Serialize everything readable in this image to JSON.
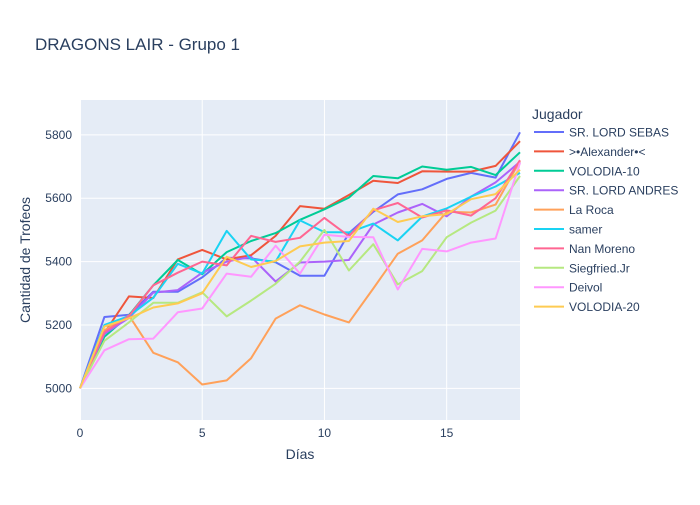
{
  "chart_data": {
    "type": "line",
    "title": "DRAGONS LAIR - Grupo 1",
    "xlabel": "Días",
    "ylabel": "Cantidad de Trofeos",
    "xlim": [
      0,
      18
    ],
    "ylim": [
      4900,
      5910
    ],
    "xticks": [
      0,
      5,
      10,
      15
    ],
    "yticks": [
      5000,
      5200,
      5400,
      5600,
      5800
    ],
    "grid": true,
    "legend_title": "Jugador",
    "legend_position": "right",
    "x": [
      0,
      1,
      2,
      3,
      4,
      5,
      6,
      7,
      8,
      9,
      10,
      11,
      12,
      13,
      14,
      15,
      16,
      17,
      18
    ],
    "series": [
      {
        "name": "SR. LORD SEBAS",
        "color": "#636efa",
        "values": [
          5000,
          5225,
          5232,
          5305,
          5305,
          5350,
          5412,
          5410,
          5398,
          5355,
          5355,
          5490,
          5557,
          5612,
          5628,
          5661,
          5680,
          5665,
          5808
        ]
      },
      {
        "name": ">•Alexander•<",
        "color": "#ef553b",
        "values": [
          5000,
          5175,
          5290,
          5285,
          5407,
          5437,
          5407,
          5420,
          5481,
          5575,
          5567,
          5610,
          5655,
          5648,
          5685,
          5684,
          5684,
          5702,
          5780
        ]
      },
      {
        "name": "VOLODIA-10",
        "color": "#00cc96",
        "values": [
          5000,
          5163,
          5230,
          5325,
          5405,
          5360,
          5430,
          5465,
          5490,
          5532,
          5565,
          5602,
          5670,
          5663,
          5700,
          5690,
          5699,
          5673,
          5745
        ]
      },
      {
        "name": "SR. LORD ANDRES",
        "color": "#ab63fa",
        "values": [
          5000,
          5172,
          5222,
          5302,
          5310,
          5365,
          5400,
          5415,
          5337,
          5397,
          5400,
          5405,
          5517,
          5555,
          5582,
          5543,
          5605,
          5650,
          5715
        ]
      },
      {
        "name": "La Roca",
        "color": "#ffa15a",
        "values": [
          5000,
          5183,
          5230,
          5112,
          5082,
          5012,
          5025,
          5095,
          5220,
          5262,
          5233,
          5208,
          5315,
          5425,
          5467,
          5557,
          5555,
          5580,
          5718
        ]
      },
      {
        "name": "samer",
        "color": "#19d3f3",
        "values": [
          5000,
          5200,
          5228,
          5286,
          5393,
          5362,
          5497,
          5407,
          5400,
          5530,
          5493,
          5492,
          5520,
          5467,
          5542,
          5568,
          5605,
          5637,
          5680
        ]
      },
      {
        "name": "Nan Moreno",
        "color": "#ff6692",
        "values": [
          5000,
          5177,
          5228,
          5325,
          5365,
          5400,
          5388,
          5481,
          5462,
          5475,
          5538,
          5480,
          5562,
          5585,
          5539,
          5562,
          5545,
          5600,
          5720
        ]
      },
      {
        "name": "Siegfried.Jr",
        "color": "#b6e880",
        "values": [
          5000,
          5150,
          5208,
          5270,
          5270,
          5303,
          5227,
          5277,
          5330,
          5400,
          5500,
          5372,
          5455,
          5328,
          5370,
          5477,
          5523,
          5561,
          5670
        ]
      },
      {
        "name": "Deivol",
        "color": "#ff97ff",
        "values": [
          5000,
          5120,
          5155,
          5157,
          5240,
          5252,
          5362,
          5352,
          5450,
          5362,
          5485,
          5478,
          5477,
          5312,
          5440,
          5432,
          5460,
          5473,
          5712
        ]
      },
      {
        "name": "VOLODIA-20",
        "color": "#fecb52",
        "values": [
          5000,
          5195,
          5221,
          5255,
          5268,
          5300,
          5415,
          5383,
          5402,
          5448,
          5460,
          5465,
          5567,
          5525,
          5543,
          5550,
          5597,
          5613,
          5690
        ]
      }
    ]
  }
}
